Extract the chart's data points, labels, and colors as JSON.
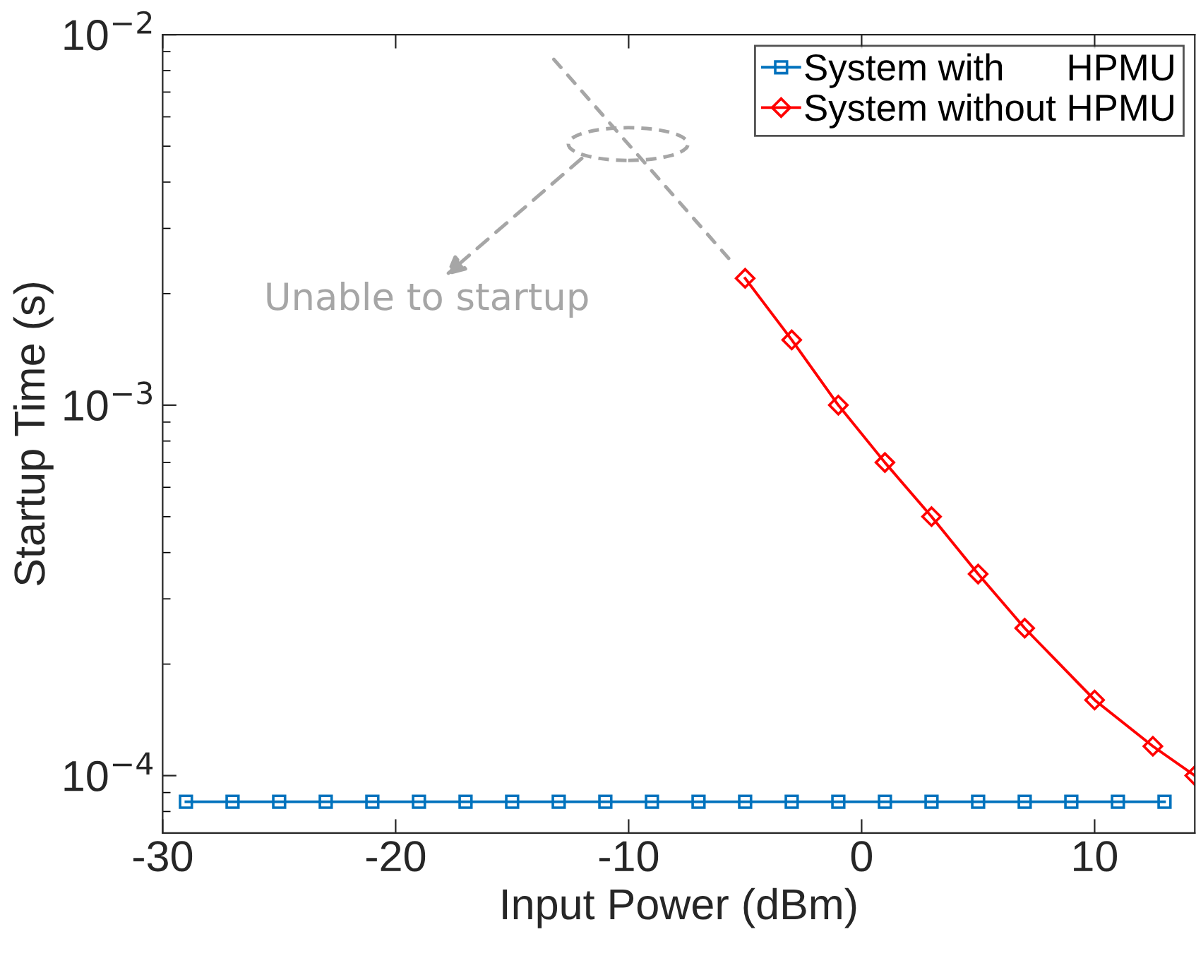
{
  "chart_data": {
    "type": "line",
    "xlabel": "Input Power (dBm)",
    "ylabel": "Startup Time (s)",
    "log": "y",
    "xlim": [
      -30,
      14.3
    ],
    "ylim": [
      7e-05,
      0.01
    ],
    "xticks": [
      -30,
      -20,
      -10,
      0,
      10
    ],
    "yticks": [
      {
        "value": 0.0001,
        "label": "10$^{−4}$"
      },
      {
        "value": 0.001,
        "label": "10$^{−3}$"
      },
      {
        "value": 0.01,
        "label": "10$^{−2}$"
      }
    ],
    "grid": false,
    "legend": "top right",
    "series": [
      {
        "name": "System with      HPMU",
        "color": "#0072bd",
        "marker": "square",
        "x": [
          -29,
          -27,
          -25,
          -23,
          -21,
          -19,
          -17,
          -15,
          -13,
          -11,
          -9,
          -7,
          -5,
          -3,
          -1,
          1,
          3,
          5,
          7,
          9,
          11,
          13
        ],
        "values": [
          8.5e-05,
          8.5e-05,
          8.5e-05,
          8.5e-05,
          8.5e-05,
          8.5e-05,
          8.5e-05,
          8.5e-05,
          8.5e-05,
          8.5e-05,
          8.5e-05,
          8.5e-05,
          8.5e-05,
          8.5e-05,
          8.5e-05,
          8.5e-05,
          8.5e-05,
          8.5e-05,
          8.5e-05,
          8.5e-05,
          8.5e-05,
          8.5e-05
        ]
      },
      {
        "name": "System without HPMU",
        "color": "#ff0000",
        "marker": "diamond",
        "x": [
          -5,
          -3,
          -1,
          1,
          3,
          5,
          7,
          10,
          12.5,
          14.3
        ],
        "values": [
          0.0022,
          0.0015,
          0.001,
          0.0007,
          0.0005,
          0.00035,
          0.00025,
          0.00016,
          0.00012,
          0.0001
        ]
      }
    ],
    "annotations": [
      "Unable to startup"
    ]
  }
}
